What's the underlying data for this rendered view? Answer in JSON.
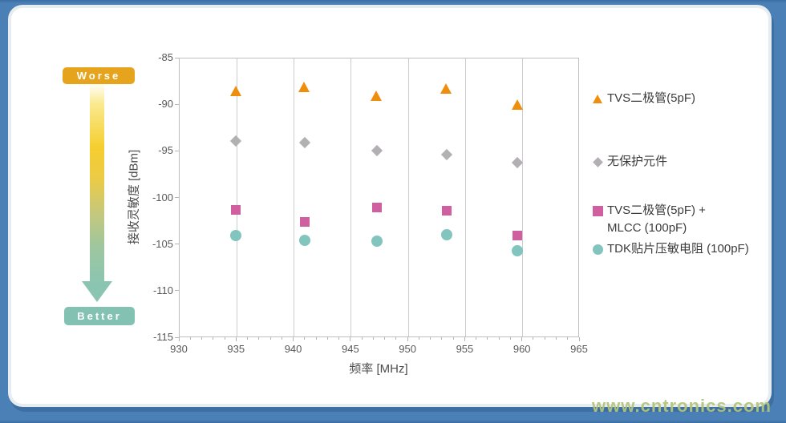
{
  "annotations": {
    "worse_label": "Worse",
    "better_label": "Better",
    "worse_color": "#e6a41e",
    "better_color": "#83c2b3",
    "gradient_top_color": "#f5ce2f",
    "gradient_bottom_color": "#8bc5b2"
  },
  "watermark": "www.cntronics.com",
  "chart_data": {
    "type": "scatter",
    "title": "",
    "xlabel": "频率 [MHz]",
    "ylabel": "接收灵敏度 [dBm]",
    "xlim": [
      930,
      965
    ],
    "ylim": [
      -115,
      -85
    ],
    "x_major_ticks": [
      930,
      935,
      940,
      945,
      950,
      955,
      960,
      965
    ],
    "x_minor_tick_step": 1,
    "y_ticks": [
      -85,
      -90,
      -95,
      -100,
      -105,
      -110,
      -115
    ],
    "gridlines_x": [
      935,
      940,
      945,
      950,
      955,
      960
    ],
    "grid": "vertical-only",
    "legend_position": "right",
    "x": [
      935,
      941,
      947.3,
      953.4,
      959.6
    ],
    "series": [
      {
        "name": "TVS二极管(5pF)",
        "legend_lines": [
          "TVS二极管(5pF)"
        ],
        "shape": "triangle",
        "color": "#ef8e0d",
        "values": [
          -88.6,
          -88.1,
          -89.1,
          -88.3,
          -90.0
        ]
      },
      {
        "name": "无保护元件",
        "legend_lines": [
          "无保护元件"
        ],
        "shape": "diamond",
        "color": "#b2b0b2",
        "values": [
          -93.9,
          -94.1,
          -95.0,
          -95.4,
          -96.3
        ]
      },
      {
        "name": "TVS二极管(5pF) + MLCC (100pF)",
        "legend_lines": [
          "TVS二极管(5pF) +",
          "MLCC (100pF)"
        ],
        "shape": "square",
        "color": "#cf5f9e",
        "values": [
          -101.3,
          -102.6,
          -101.1,
          -101.4,
          -104.1
        ]
      },
      {
        "name": "TDK贴片压敏电阻 (100pF)",
        "legend_lines": [
          "TDK贴片压敏电阻 (100pF)"
        ],
        "shape": "circle",
        "color": "#82c4be",
        "values": [
          -104.1,
          -104.6,
          -104.7,
          -104.0,
          -105.7
        ]
      }
    ]
  }
}
